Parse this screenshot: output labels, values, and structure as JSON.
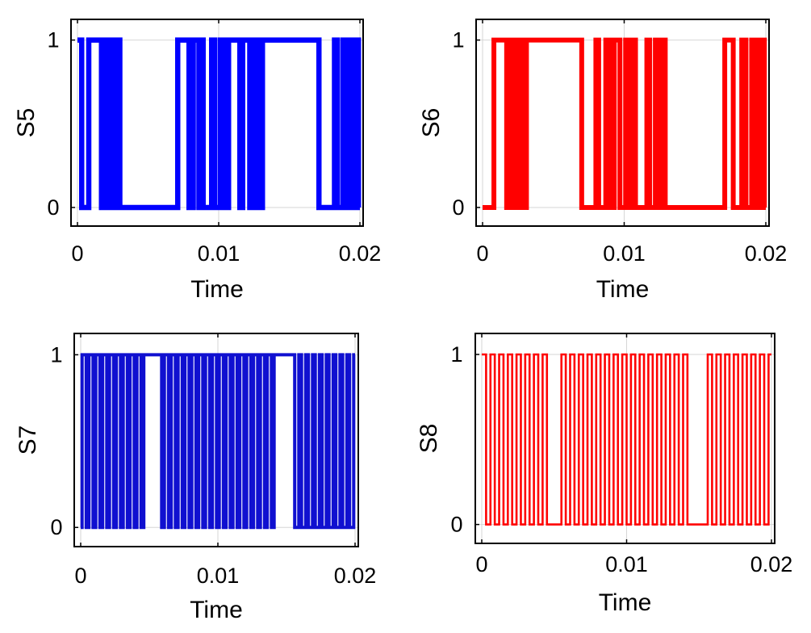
{
  "chart_data": [
    {
      "type": "line",
      "step": true,
      "xlabel": "Time",
      "ylabel": "S5",
      "xlim": [
        0,
        0.02
      ],
      "ylim": [
        0,
        1
      ],
      "xticks": [
        "0",
        "0.01",
        "0.02"
      ],
      "yticks": [
        "0",
        "1"
      ],
      "grid": true,
      "color": "#0000ff",
      "series": [
        {
          "edges": [
            0,
            0.0003,
            0.0008,
            0.0017,
            0.0019,
            0.0022,
            0.0025,
            0.0027,
            0.0028,
            0.0029,
            0.00295,
            0.003,
            0.0071,
            0.0079,
            0.0082,
            0.0086,
            0.0088,
            0.0089,
            0.0095,
            0.0097,
            0.0101,
            0.0102,
            0.0103,
            0.0104,
            0.0105,
            0.0106,
            0.0107,
            0.0115,
            0.0117,
            0.0122,
            0.0124,
            0.0126,
            0.0127,
            0.0128,
            0.0129,
            0.013,
            0.0131,
            0.0171,
            0.0182,
            0.0184,
            0.0188,
            0.019,
            0.0191,
            0.0192,
            0.0193,
            0.0194,
            0.0196,
            0.0197,
            0.0198,
            0.0199,
            0.02
          ],
          "levels": [
            1,
            0,
            1,
            0,
            1,
            0,
            1,
            0,
            1,
            0,
            1,
            0,
            1,
            0,
            1,
            0,
            1,
            0,
            1,
            0,
            1,
            0,
            1,
            0,
            1,
            0,
            1,
            0,
            1,
            0,
            1,
            0,
            1,
            0,
            1,
            0,
            1,
            0,
            1,
            0,
            1,
            0,
            1,
            0,
            1,
            0,
            1,
            0,
            1,
            0
          ]
        }
      ]
    },
    {
      "type": "line",
      "step": true,
      "xlabel": "Time",
      "ylabel": "S6",
      "xlim": [
        0,
        0.02
      ],
      "ylim": [
        0,
        1
      ],
      "xticks": [
        "0",
        "0.01",
        "0.02"
      ],
      "yticks": [
        "0",
        "1"
      ],
      "grid": true,
      "color": "#ff0000",
      "series": [
        {
          "edges": [
            0,
            0.0008,
            0.0017,
            0.0019,
            0.0021,
            0.0023,
            0.0025,
            0.0026,
            0.0027,
            0.0028,
            0.0029,
            0.0031,
            0.007,
            0.008,
            0.0082,
            0.0087,
            0.0089,
            0.0091,
            0.0092,
            0.0093,
            0.0097,
            0.0101,
            0.0102,
            0.0103,
            0.0104,
            0.0106,
            0.0108,
            0.0116,
            0.0118,
            0.0122,
            0.0125,
            0.0126,
            0.0127,
            0.0128,
            0.0129,
            0.013,
            0.0171,
            0.0177,
            0.0183,
            0.0186,
            0.019,
            0.0191,
            0.0192,
            0.0193,
            0.0194,
            0.0195,
            0.0196,
            0.0197,
            0.0198,
            0.0199,
            0.02
          ],
          "levels": [
            0,
            1,
            0,
            1,
            0,
            1,
            0,
            1,
            0,
            1,
            0,
            1,
            0,
            1,
            0,
            1,
            0,
            1,
            0,
            1,
            0,
            1,
            0,
            1,
            0,
            1,
            0,
            1,
            0,
            1,
            0,
            1,
            0,
            1,
            0,
            0,
            1,
            0,
            1,
            0,
            1,
            0,
            1,
            0,
            1,
            0,
            1,
            0,
            1,
            0
          ]
        }
      ]
    },
    {
      "type": "line",
      "step": true,
      "xlabel": "Time",
      "ylabel": "S7",
      "xlim": [
        0,
        0.02
      ],
      "ylim": [
        0,
        1
      ],
      "xticks": [
        "0",
        "0.01",
        "0.02"
      ],
      "yticks": [
        "0",
        "1"
      ],
      "grid": true,
      "color": "#1010d0",
      "series": [
        {
          "edges": [
            0,
            0.0001,
            0.0004,
            0.0006,
            0.0009,
            0.0011,
            0.0014,
            0.0016,
            0.0019,
            0.0021,
            0.0024,
            0.0026,
            0.0029,
            0.0031,
            0.0034,
            0.0036,
            0.0039,
            0.0041,
            0.0044,
            0.0046,
            0.0059,
            0.0061,
            0.0064,
            0.0066,
            0.0069,
            0.0071,
            0.0074,
            0.0076,
            0.0079,
            0.0081,
            0.0084,
            0.0086,
            0.0089,
            0.0091,
            0.0094,
            0.0096,
            0.0099,
            0.0101,
            0.0104,
            0.0106,
            0.0109,
            0.0111,
            0.0114,
            0.0116,
            0.0119,
            0.0121,
            0.0124,
            0.0126,
            0.0129,
            0.0131,
            0.0134,
            0.0136,
            0.0139,
            0.0141,
            0.0156,
            0.0159,
            0.0161,
            0.0164,
            0.0166,
            0.0169,
            0.0171,
            0.0174,
            0.0176,
            0.0179,
            0.0181,
            0.0184,
            0.0186,
            0.0189,
            0.0191,
            0.0194,
            0.0196,
            0.0199,
            0.02
          ],
          "levels": [
            0,
            1,
            0,
            1,
            0,
            1,
            0,
            1,
            0,
            1,
            0,
            1,
            0,
            1,
            0,
            1,
            0,
            1,
            0,
            1,
            0,
            1,
            0,
            1,
            0,
            1,
            0,
            1,
            0,
            1,
            0,
            1,
            0,
            1,
            0,
            1,
            0,
            1,
            0,
            1,
            0,
            1,
            0,
            1,
            0,
            1,
            0,
            1,
            0,
            1,
            0,
            1,
            0,
            1,
            0,
            1,
            0,
            1,
            0,
            1,
            0,
            1,
            0,
            1,
            0,
            1,
            0,
            1,
            0,
            1,
            0,
            1
          ]
        }
      ]
    },
    {
      "type": "line",
      "step": true,
      "xlabel": "Time",
      "ylabel": "S8",
      "xlim": [
        0,
        0.02
      ],
      "ylim": [
        0,
        1
      ],
      "xticks": [
        "0",
        "0.01",
        "0.02"
      ],
      "yticks": [
        "0",
        "1"
      ],
      "grid": true,
      "color": "#ff0000",
      "series": [
        {
          "edges": [
            0,
            0.0003,
            0.0006,
            0.0009,
            0.0012,
            0.0015,
            0.0018,
            0.0021,
            0.0024,
            0.0027,
            0.003,
            0.0033,
            0.0036,
            0.0039,
            0.0042,
            0.0045,
            0.0055,
            0.0058,
            0.0061,
            0.0064,
            0.0067,
            0.007,
            0.0073,
            0.0076,
            0.0079,
            0.0082,
            0.0085,
            0.0088,
            0.0091,
            0.0094,
            0.0097,
            0.01,
            0.0103,
            0.0106,
            0.0109,
            0.0112,
            0.0115,
            0.0118,
            0.0121,
            0.0124,
            0.0127,
            0.013,
            0.0133,
            0.0136,
            0.0139,
            0.0142,
            0.0156,
            0.0159,
            0.0162,
            0.0165,
            0.0168,
            0.0171,
            0.0174,
            0.0177,
            0.018,
            0.0183,
            0.0186,
            0.0189,
            0.0192,
            0.0195,
            0.0198,
            0.02
          ],
          "levels": [
            1,
            0,
            1,
            0,
            1,
            0,
            1,
            0,
            1,
            0,
            1,
            0,
            1,
            0,
            1,
            0,
            1,
            0,
            1,
            0,
            1,
            0,
            1,
            0,
            1,
            0,
            1,
            0,
            1,
            0,
            1,
            0,
            1,
            0,
            1,
            0,
            1,
            0,
            1,
            0,
            1,
            0,
            1,
            0,
            1,
            0,
            1,
            0,
            1,
            0,
            1,
            0,
            1,
            0,
            1,
            0,
            1,
            0,
            1,
            0,
            1
          ]
        }
      ]
    }
  ]
}
